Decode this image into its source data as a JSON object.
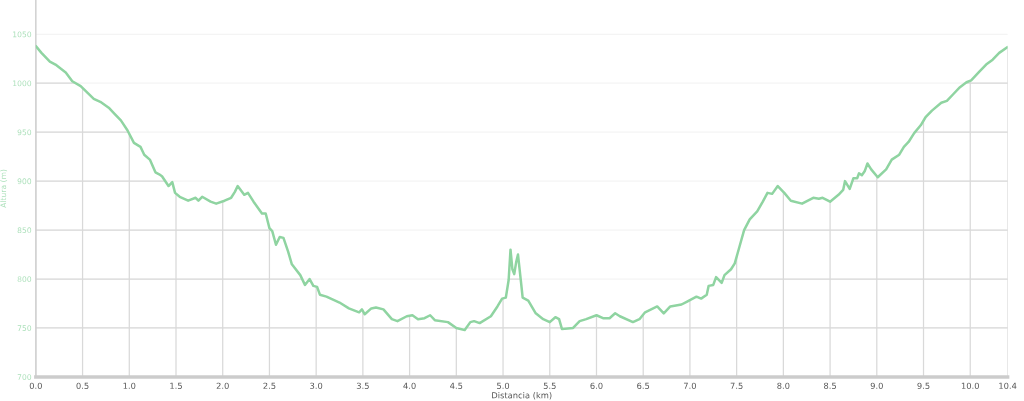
{
  "chart_data": {
    "type": "line",
    "xlabel": "Distancia (km)",
    "ylabel": "Altura (m)",
    "xlim": [
      0,
      10.4
    ],
    "ylim": [
      700,
      1085
    ],
    "xticks": [
      {
        "value": 0,
        "label": "0.0"
      },
      0.5,
      {
        "value": 1,
        "label": "1.0"
      },
      1.5,
      {
        "value": 2,
        "label": "2.0"
      },
      2.5,
      {
        "value": 3,
        "label": "3.0"
      },
      3.5,
      {
        "value": 4,
        "label": "4.0"
      },
      4.5,
      {
        "value": 5,
        "label": "5.0"
      },
      5.5,
      {
        "value": 6,
        "label": "6.0"
      },
      6.5,
      {
        "value": 7,
        "label": "7.0"
      },
      7.5,
      {
        "value": 8,
        "label": "8.0"
      },
      8.5,
      {
        "value": 9,
        "label": "9.0"
      },
      9.5,
      {
        "value": 10,
        "label": "10.0"
      },
      10.4
    ],
    "yticks": [
      700,
      750,
      800,
      850,
      900,
      950,
      1000,
      1050
    ],
    "grid": true,
    "line_style": "solid",
    "x": [
      0,
      0.06,
      0.15,
      0.21,
      0.32,
      0.39,
      0.48,
      0.62,
      0.69,
      0.78,
      0.84,
      0.91,
      0.98,
      1.05,
      1.12,
      1.16,
      1.22,
      1.28,
      1.32,
      1.35,
      1.42,
      1.46,
      1.49,
      1.54,
      1.63,
      1.71,
      1.74,
      1.78,
      1.87,
      1.93,
      2.02,
      2.09,
      2.13,
      2.16,
      2.23,
      2.27,
      2.33,
      2.42,
      2.46,
      2.5,
      2.53,
      2.57,
      2.61,
      2.65,
      2.7,
      2.74,
      2.83,
      2.88,
      2.93,
      2.97,
      3.01,
      3.04,
      3.11,
      3.25,
      3.35,
      3.46,
      3.49,
      3.52,
      3.59,
      3.64,
      3.72,
      3.81,
      3.87,
      3.97,
      4.03,
      4.09,
      4.16,
      4.22,
      4.27,
      4.41,
      4.5,
      4.59,
      4.65,
      4.69,
      4.75,
      4.87,
      4.94,
      4.99,
      5.03,
      5.06,
      5.08,
      5.1,
      5.12,
      5.14,
      5.16,
      5.19,
      5.21,
      5.27,
      5.35,
      5.43,
      5.5,
      5.56,
      5.6,
      5.63,
      5.75,
      5.82,
      5.89,
      6.0,
      6.07,
      6.14,
      6.2,
      6.25,
      6.39,
      6.46,
      6.52,
      6.65,
      6.72,
      6.79,
      6.91,
      6.97,
      7.07,
      7.12,
      7.18,
      7.2,
      7.25,
      7.28,
      7.34,
      7.37,
      7.44,
      7.48,
      7.53,
      7.58,
      7.64,
      7.72,
      7.78,
      7.83,
      7.88,
      7.94,
      8.01,
      8.08,
      8.2,
      8.32,
      8.38,
      8.42,
      8.5,
      8.59,
      8.64,
      8.66,
      8.71,
      8.75,
      8.79,
      8.81,
      8.84,
      8.87,
      8.9,
      8.94,
      9.01,
      9.1,
      9.16,
      9.24,
      9.29,
      9.34,
      9.4,
      9.47,
      9.52,
      9.59,
      9.69,
      9.75,
      9.82,
      9.89,
      9.96,
      10.01,
      10.1,
      10.17,
      10.24,
      10.31,
      10.4
    ],
    "series": [
      {
        "color": "#8fd4a1",
        "values": [
          1038,
          1031,
          1022,
          1019,
          1011,
          1002,
          997,
          984,
          981,
          975,
          969,
          962,
          952,
          939,
          935,
          927,
          922,
          909,
          907,
          905,
          895,
          899,
          888,
          884,
          880,
          883,
          880,
          884,
          879,
          877,
          880,
          883,
          889,
          895,
          886,
          888,
          879,
          867,
          867,
          852,
          849,
          835,
          843,
          842,
          828,
          815,
          804,
          794,
          800,
          793,
          792,
          784,
          782,
          776,
          770,
          766,
          769,
          764,
          770,
          771,
          769,
          759,
          757,
          762,
          763,
          759,
          760,
          763,
          758,
          756,
          750,
          748,
          756,
          757,
          755,
          762,
          772,
          780,
          781,
          799,
          830,
          810,
          805,
          817,
          825,
          799,
          781,
          778,
          765,
          759,
          756,
          761,
          759,
          749,
          750,
          757,
          759,
          763,
          760,
          760,
          765,
          762,
          756,
          759,
          766,
          772,
          765,
          772,
          774,
          777,
          782,
          780,
          784,
          793,
          794,
          802,
          796,
          804,
          810,
          816,
          833,
          850,
          861,
          869,
          879,
          888,
          887,
          895,
          888,
          880,
          877,
          883,
          882,
          883,
          879,
          886,
          891,
          900,
          892,
          903,
          903,
          908,
          906,
          910,
          918,
          912,
          904,
          912,
          922,
          927,
          935,
          940,
          949,
          957,
          965,
          972,
          980,
          982,
          989,
          996,
          1001,
          1003,
          1012,
          1019,
          1024,
          1031,
          1037
        ]
      }
    ]
  }
}
